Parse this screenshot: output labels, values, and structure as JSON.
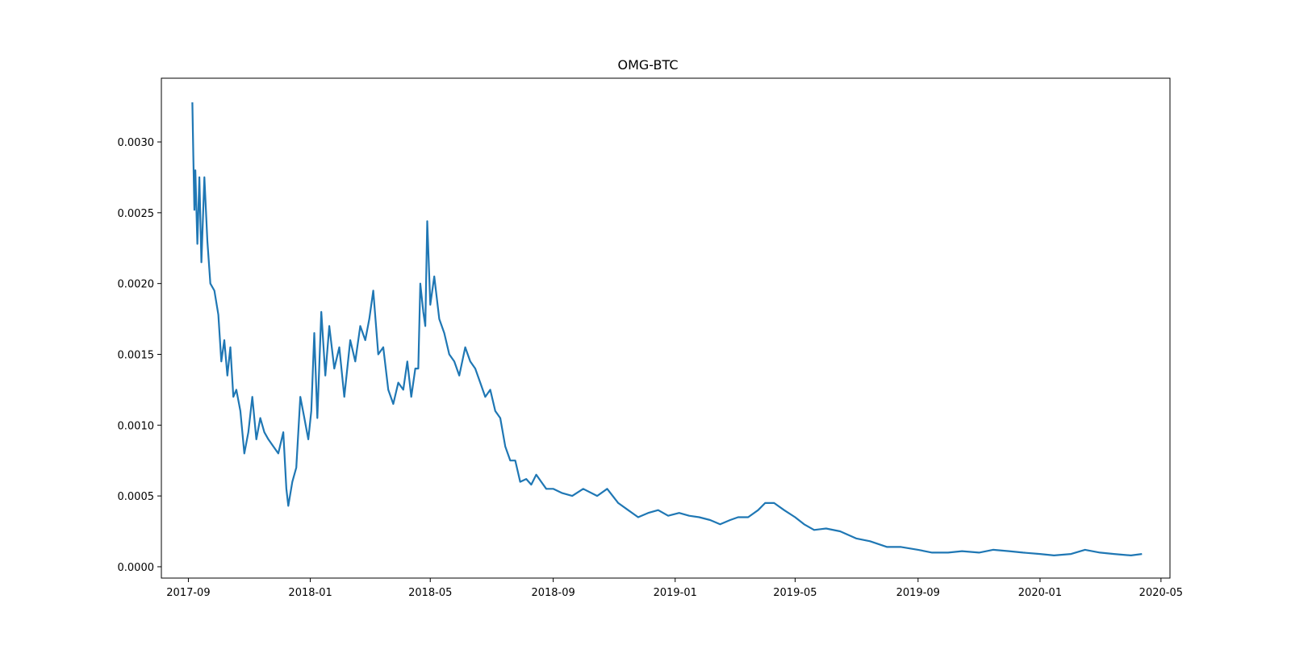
{
  "chart_data": {
    "type": "line",
    "title": "OMG-BTC",
    "xlabel": "",
    "ylabel": "",
    "xlim": [
      "2017-08-05",
      "2020-05-10"
    ],
    "ylim": [
      -8e-05,
      0.00345
    ],
    "grid": false,
    "legend": "none",
    "line_color": "#1f77b4",
    "x_ticks": [
      "2017-09-01",
      "2018-01-01",
      "2018-05-01",
      "2018-09-01",
      "2019-01-01",
      "2019-05-01",
      "2019-09-01",
      "2020-01-01",
      "2020-05-01"
    ],
    "x_tick_labels": [
      "2017-09",
      "2018-01",
      "2018-05",
      "2018-09",
      "2019-01",
      "2019-05",
      "2019-09",
      "2020-01",
      "2020-05"
    ],
    "y_ticks": [
      0,
      0.0005,
      0.001,
      0.0015,
      0.002,
      0.0025,
      0.003
    ],
    "y_tick_labels": [
      "0.0000",
      "0.0005",
      "0.0010",
      "0.0015",
      "0.0020",
      "0.0025",
      "0.0030"
    ],
    "series": [
      {
        "x": [
          "2017-09-05",
          "2017-09-06",
          "2017-09-07",
          "2017-09-08",
          "2017-09-10",
          "2017-09-12",
          "2017-09-14",
          "2017-09-17",
          "2017-09-20",
          "2017-09-23",
          "2017-09-27",
          "2017-10-01",
          "2017-10-04",
          "2017-10-07",
          "2017-10-10",
          "2017-10-13",
          "2017-10-16",
          "2017-10-19",
          "2017-10-23",
          "2017-10-27",
          "2017-10-31",
          "2017-11-04",
          "2017-11-08",
          "2017-11-12",
          "2017-11-16",
          "2017-11-20",
          "2017-11-25",
          "2017-11-30",
          "2017-12-05",
          "2017-12-08",
          "2017-12-10",
          "2017-12-14",
          "2017-12-18",
          "2017-12-22",
          "2017-12-26",
          "2017-12-30",
          "2018-01-02",
          "2018-01-05",
          "2018-01-08",
          "2018-01-12",
          "2018-01-16",
          "2018-01-20",
          "2018-01-25",
          "2018-01-30",
          "2018-02-04",
          "2018-02-10",
          "2018-02-15",
          "2018-02-20",
          "2018-02-25",
          "2018-03-01",
          "2018-03-05",
          "2018-03-10",
          "2018-03-15",
          "2018-03-20",
          "2018-03-25",
          "2018-03-30",
          "2018-04-04",
          "2018-04-08",
          "2018-04-12",
          "2018-04-16",
          "2018-04-19",
          "2018-04-21",
          "2018-04-24",
          "2018-04-26",
          "2018-04-28",
          "2018-05-01",
          "2018-05-05",
          "2018-05-10",
          "2018-05-15",
          "2018-05-20",
          "2018-05-25",
          "2018-05-30",
          "2018-06-05",
          "2018-06-10",
          "2018-06-15",
          "2018-06-20",
          "2018-06-25",
          "2018-06-30",
          "2018-07-05",
          "2018-07-10",
          "2018-07-15",
          "2018-07-20",
          "2018-07-25",
          "2018-07-30",
          "2018-08-05",
          "2018-08-10",
          "2018-08-15",
          "2018-08-20",
          "2018-08-25",
          "2018-09-01",
          "2018-09-10",
          "2018-09-20",
          "2018-10-01",
          "2018-10-15",
          "2018-10-25",
          "2018-11-05",
          "2018-11-15",
          "2018-11-25",
          "2018-12-05",
          "2018-12-15",
          "2018-12-25",
          "2019-01-05",
          "2019-01-15",
          "2019-01-25",
          "2019-02-05",
          "2019-02-15",
          "2019-02-25",
          "2019-03-05",
          "2019-03-15",
          "2019-03-25",
          "2019-04-01",
          "2019-04-10",
          "2019-04-20",
          "2019-05-01",
          "2019-05-10",
          "2019-05-20",
          "2019-06-01",
          "2019-06-15",
          "2019-07-01",
          "2019-07-15",
          "2019-08-01",
          "2019-08-15",
          "2019-09-01",
          "2019-09-15",
          "2019-10-01",
          "2019-10-15",
          "2019-11-01",
          "2019-11-15",
          "2019-12-01",
          "2019-12-15",
          "2020-01-01",
          "2020-01-15",
          "2020-02-01",
          "2020-02-15",
          "2020-03-01",
          "2020-03-15",
          "2020-04-01",
          "2020-04-12"
        ],
        "y": [
          0.00328,
          0.0029,
          0.00252,
          0.0028,
          0.00228,
          0.00275,
          0.00215,
          0.00275,
          0.0023,
          0.002,
          0.00195,
          0.00178,
          0.00145,
          0.0016,
          0.00135,
          0.00155,
          0.0012,
          0.00125,
          0.0011,
          0.0008,
          0.00095,
          0.0012,
          0.0009,
          0.00105,
          0.00095,
          0.0009,
          0.00085,
          0.0008,
          0.00095,
          0.00055,
          0.00043,
          0.0006,
          0.0007,
          0.0012,
          0.00105,
          0.0009,
          0.0011,
          0.00165,
          0.00105,
          0.0018,
          0.00135,
          0.0017,
          0.0014,
          0.00155,
          0.0012,
          0.0016,
          0.00145,
          0.0017,
          0.0016,
          0.00175,
          0.00195,
          0.0015,
          0.00155,
          0.00125,
          0.00115,
          0.0013,
          0.00125,
          0.00145,
          0.0012,
          0.0014,
          0.0014,
          0.002,
          0.0018,
          0.0017,
          0.00244,
          0.00185,
          0.00205,
          0.00175,
          0.00165,
          0.0015,
          0.00145,
          0.00135,
          0.00155,
          0.00145,
          0.0014,
          0.0013,
          0.0012,
          0.00125,
          0.0011,
          0.00105,
          0.00085,
          0.00075,
          0.00075,
          0.0006,
          0.00062,
          0.00058,
          0.00065,
          0.0006,
          0.00055,
          0.00055,
          0.00052,
          0.0005,
          0.00055,
          0.0005,
          0.00055,
          0.00045,
          0.0004,
          0.00035,
          0.00038,
          0.0004,
          0.00036,
          0.00038,
          0.00036,
          0.00035,
          0.00033,
          0.0003,
          0.00033,
          0.00035,
          0.00035,
          0.0004,
          0.00045,
          0.00045,
          0.0004,
          0.00035,
          0.0003,
          0.00026,
          0.00027,
          0.00025,
          0.0002,
          0.00018,
          0.00014,
          0.00014,
          0.00012,
          0.0001,
          0.0001,
          0.00011,
          0.0001,
          0.00012,
          0.00011,
          0.0001,
          9e-05,
          8e-05,
          9e-05,
          0.00012,
          0.0001,
          9e-05,
          8e-05,
          9e-05
        ]
      }
    ]
  }
}
